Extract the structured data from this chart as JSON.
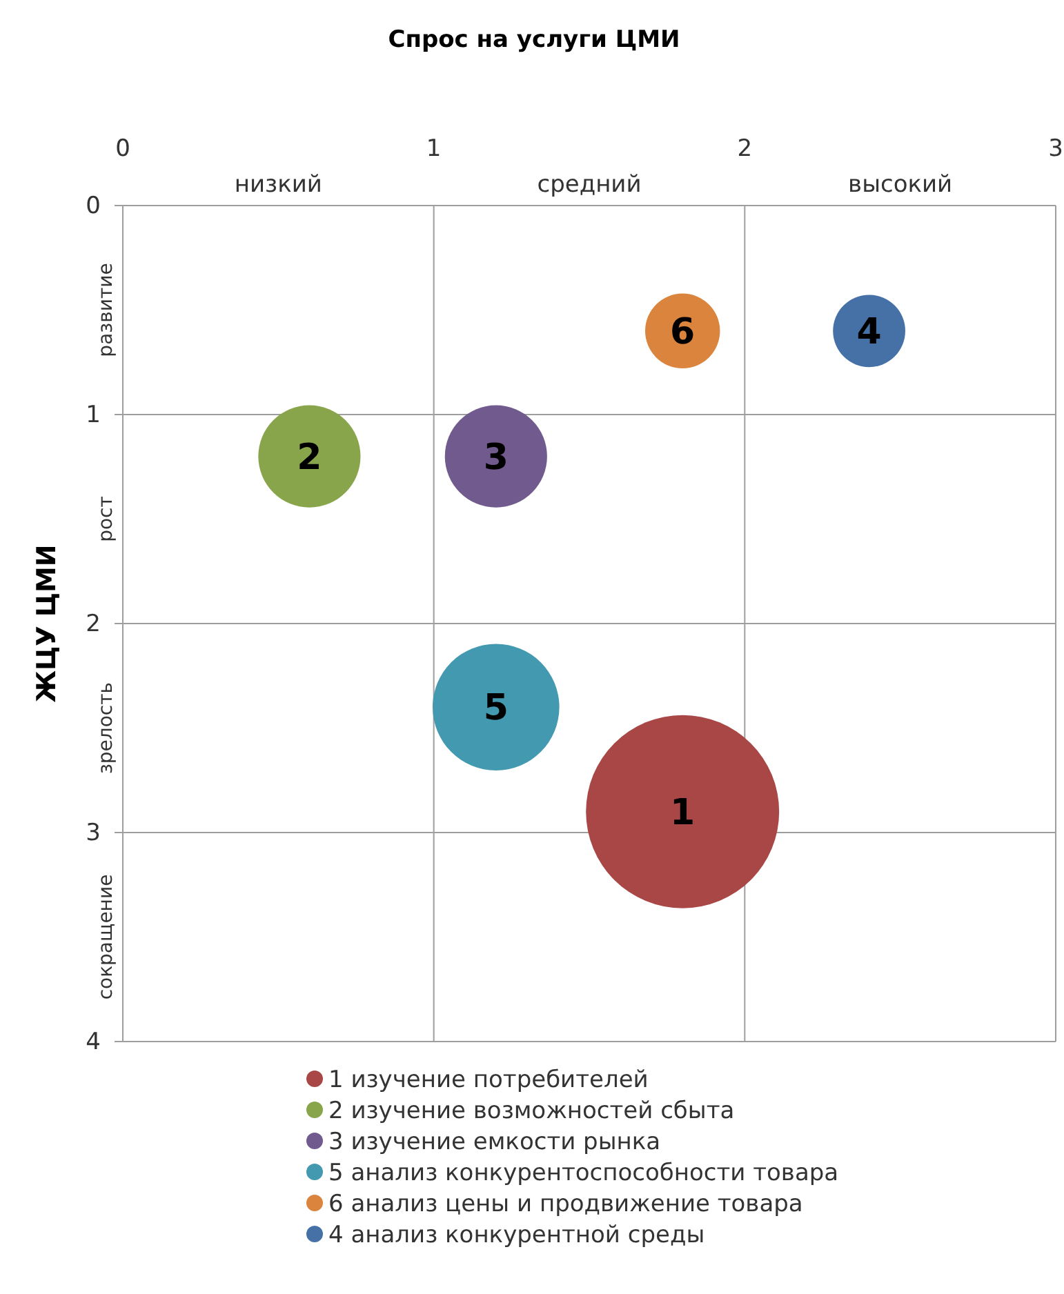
{
  "chart_data": {
    "type": "bubble",
    "xlabel": "Спрос на услуги ЦМИ",
    "ylabel": "ЖЦУ ЦМИ",
    "xlim": [
      0,
      3
    ],
    "xticks": [
      0,
      1,
      2,
      3
    ],
    "ylim": [
      4,
      0
    ],
    "yticks": [
      0,
      1,
      2,
      3,
      4
    ],
    "grid": true,
    "legend": "bottom",
    "series": [
      {
        "name": "1 изучение потребителей",
        "color": "#a84746",
        "x": [
          1.8
        ],
        "values": [
          2.9
        ],
        "sizes": [
          1
        ]
      },
      {
        "name": "2 изучение возможностей сбыта",
        "color": "#88a54c",
        "x": [
          0.6
        ],
        "values": [
          1.2
        ],
        "sizes": [
          0.28
        ]
      },
      {
        "name": "3 изучение емкости рынка",
        "color": "#715a8e",
        "x": [
          1.2
        ],
        "values": [
          1.2
        ],
        "sizes": [
          0.28
        ]
      },
      {
        "name": "5 анализ конкурентоспособности товара",
        "color": "#4299b0",
        "x": [
          1.2
        ],
        "values": [
          2.4
        ],
        "sizes": [
          0.43
        ]
      },
      {
        "name": "6 анализ цены и продвижение товара",
        "color": "#da843d",
        "x": [
          1.8
        ],
        "values": [
          0.6
        ],
        "sizes": [
          0.15
        ]
      },
      {
        "name": "4 анализ конкурентной среды",
        "color": "#4571a6",
        "x": [
          2.4
        ],
        "values": [
          0.6
        ],
        "sizes": [
          0.14
        ]
      }
    ],
    "annotations": [
      {
        "text": "1",
        "x": 1.8,
        "y": 2.9
      },
      {
        "text": "2",
        "x": 0.6,
        "y": 1.2
      },
      {
        "text": "3",
        "x": 1.2,
        "y": 1.2
      },
      {
        "text": "5",
        "x": 1.2,
        "y": 2.4
      },
      {
        "text": "6",
        "x": 1.8,
        "y": 0.6
      },
      {
        "text": "4",
        "x": 2.4,
        "y": 0.6
      },
      "низкий",
      "средний",
      "высокий",
      "развитие",
      "рост",
      "зрелость",
      "сокращение"
    ]
  }
}
